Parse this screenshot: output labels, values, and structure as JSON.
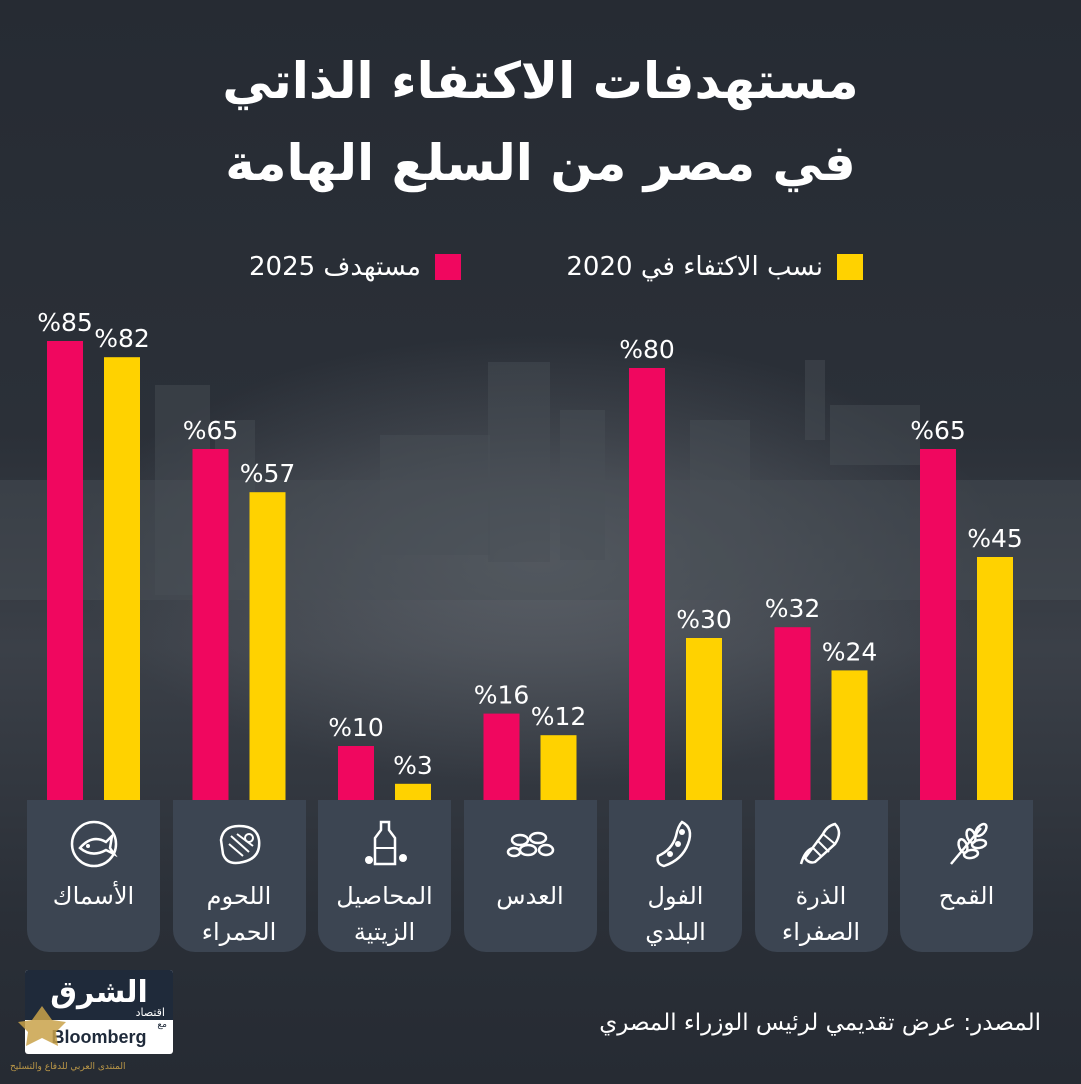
{
  "title_line1": "مستهدفات الاكتفاء الذاتي",
  "title_line2": "في مصر من السلع الهامة",
  "legend": {
    "current_label": "نسب الاكتفاء في 2020",
    "target_label": "مستهدف 2025"
  },
  "source_text": "المصدر: عرض تقديمي لرئيس الوزراء المصري",
  "logo": {
    "main": "الشرق",
    "sub": "اقتصاد",
    "with": "مع",
    "partner": "Bloomberg"
  },
  "watermark_text": "المنتدى العربي للدفاع والتسليح",
  "colors": {
    "background": "#262b33",
    "target": "#f0075f",
    "current": "#ffd200",
    "card": "#3c4552",
    "text": "#ffffff"
  },
  "chart_data": {
    "type": "bar",
    "title": "مستهدفات الاكتفاء الذاتي في مصر من السلع الهامة",
    "categories": [
      "الأسماك",
      "اللحوم\nالحمراء",
      "المحاصيل\nالزيتية",
      "العدس",
      "الفول\nالبلدي",
      "الذرة\nالصفراء",
      "القمح"
    ],
    "icons": [
      "fish-icon",
      "steak-icon",
      "oil-bottle-icon",
      "lentils-icon",
      "fava-bean-icon",
      "corn-icon",
      "wheat-icon"
    ],
    "series": [
      {
        "name": "مستهدف 2025",
        "color": "#f0075f",
        "values": [
          85,
          65,
          10,
          16,
          80,
          32,
          65
        ]
      },
      {
        "name": "نسب الاكتفاء في 2020",
        "color": "#ffd200",
        "values": [
          82,
          57,
          3,
          12,
          30,
          24,
          45
        ]
      }
    ],
    "value_format": "%{v}",
    "ylim": [
      0,
      85
    ],
    "grid": false,
    "legend_position": "top"
  }
}
